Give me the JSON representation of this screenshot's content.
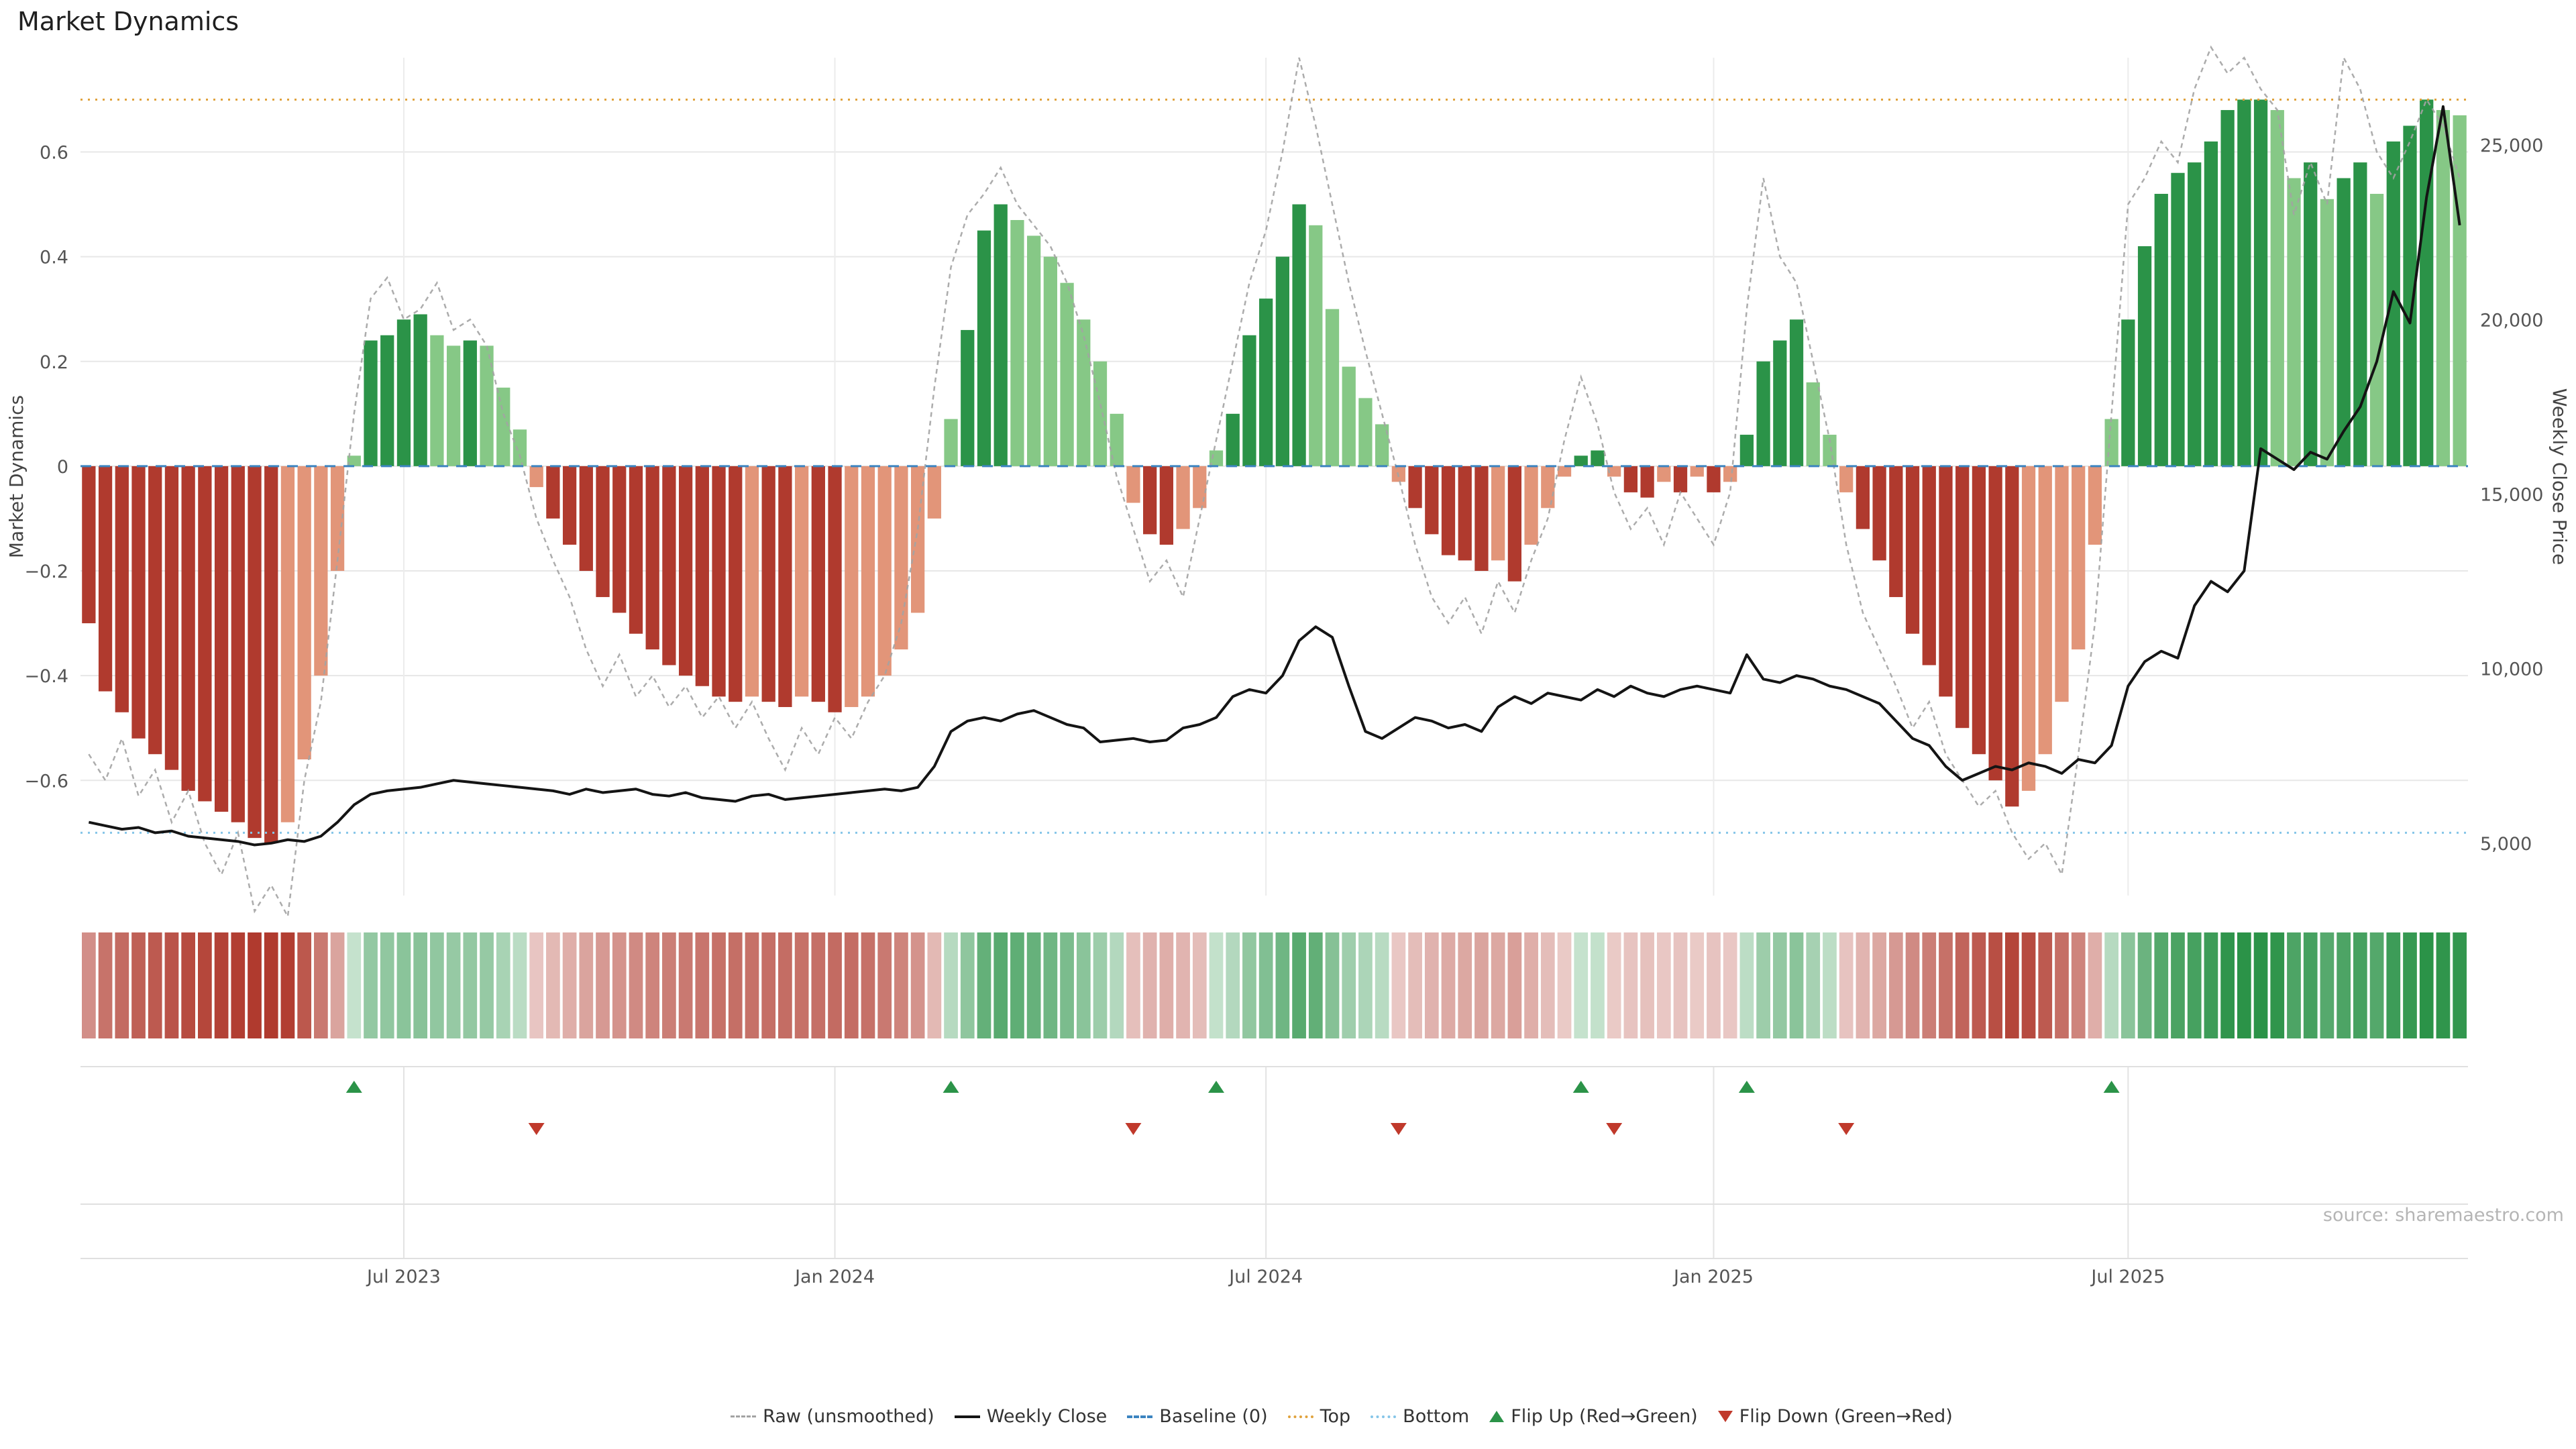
{
  "title": "Market Dynamics",
  "source": "source: sharemaestro.com",
  "axes": {
    "left_title": "Market Dynamics",
    "right_title": "Weekly Close Price",
    "left_ticks": [
      {
        "v": 0.6,
        "label": "0.6"
      },
      {
        "v": 0.4,
        "label": "0.4"
      },
      {
        "v": 0.2,
        "label": "0.2"
      },
      {
        "v": 0,
        "label": "0"
      },
      {
        "v": -0.2,
        "label": "−0.2"
      },
      {
        "v": -0.4,
        "label": "−0.4"
      },
      {
        "v": -0.6,
        "label": "−0.6"
      }
    ],
    "right_ticks": [
      {
        "v": 25000,
        "label": "25,000"
      },
      {
        "v": 20000,
        "label": "20,000"
      },
      {
        "v": 15000,
        "label": "15,000"
      },
      {
        "v": 10000,
        "label": "10,000"
      },
      {
        "v": 5000,
        "label": "5,000"
      }
    ],
    "x_ticks": [
      {
        "label": "Jul 2023",
        "index": 19
      },
      {
        "label": "Jan 2024",
        "index": 45
      },
      {
        "label": "Jul 2024",
        "index": 71
      },
      {
        "label": "Jan 2025",
        "index": 98
      },
      {
        "label": "Jul 2025",
        "index": 123
      }
    ]
  },
  "colors": {
    "bar_pos_strong": "#2b9348",
    "bar_pos_light": "#86c886",
    "bar_neg_strong": "#b03a2e",
    "bar_neg_light": "#e29579",
    "raw_line": "#a3a3a3",
    "close_line": "#141414",
    "baseline": "#3c84c0",
    "top_line": "#e0a23c",
    "bottom_line": "#85c5e8",
    "flip_up": "#2b9348",
    "flip_down": "#c0392b",
    "grid": "#e7e7e7",
    "axis_text": "#555555",
    "axis_title_text": "#444444"
  },
  "legend": {
    "items": [
      {
        "id": "raw",
        "label": "Raw (unsmoothed)",
        "swatch": "raw"
      },
      {
        "id": "weekly-close",
        "label": "Weekly Close",
        "swatch": "close"
      },
      {
        "id": "baseline",
        "label": "Baseline (0)",
        "swatch": "baseline"
      },
      {
        "id": "top",
        "label": "Top",
        "swatch": "top"
      },
      {
        "id": "bottom",
        "label": "Bottom",
        "swatch": "bottom"
      },
      {
        "id": "flip-up",
        "label": "Flip Up (Red→Green)",
        "swatch": "up"
      },
      {
        "id": "flip-down",
        "label": "Flip Down (Green→Red)",
        "swatch": "down"
      }
    ]
  },
  "chart_data": {
    "type": "bar",
    "subtype": "bar+line combo, weekly frequency, dual y-axis, with heatmap strip and flip markers",
    "title": "Market Dynamics",
    "xlabel": "",
    "ylabel_left": "Market Dynamics",
    "ylabel_right": "Weekly Close Price",
    "n_weeks": 144,
    "left_ylim": [
      -0.82,
      0.78
    ],
    "right_ylim": [
      3500,
      27500
    ],
    "grid": true,
    "legend_position": "bottom",
    "reference_lines": {
      "baseline": 0,
      "top": 0.7,
      "bottom": -0.7
    },
    "flip_up_indices": [
      16,
      52,
      68,
      90,
      100,
      122
    ],
    "flip_down_indices": [
      27,
      63,
      79,
      92,
      106
    ],
    "series": [
      {
        "name": "Market Dynamics (smoothed bars)",
        "type": "bar",
        "axis": "left",
        "values": [
          -0.3,
          -0.43,
          -0.47,
          -0.52,
          -0.55,
          -0.58,
          -0.62,
          -0.64,
          -0.66,
          -0.68,
          -0.71,
          -0.72,
          -0.68,
          -0.56,
          -0.4,
          -0.2,
          0.02,
          0.24,
          0.25,
          0.28,
          0.29,
          0.25,
          0.23,
          0.24,
          0.23,
          0.15,
          0.07,
          -0.04,
          -0.1,
          -0.15,
          -0.2,
          -0.25,
          -0.28,
          -0.32,
          -0.35,
          -0.38,
          -0.4,
          -0.42,
          -0.44,
          -0.45,
          -0.44,
          -0.45,
          -0.46,
          -0.44,
          -0.45,
          -0.47,
          -0.46,
          -0.44,
          -0.4,
          -0.35,
          -0.28,
          -0.1,
          0.09,
          0.26,
          0.45,
          0.5,
          0.47,
          0.44,
          0.4,
          0.35,
          0.28,
          0.2,
          0.1,
          -0.07,
          -0.13,
          -0.15,
          -0.12,
          -0.08,
          0.03,
          0.1,
          0.25,
          0.32,
          0.4,
          0.5,
          0.46,
          0.3,
          0.19,
          0.13,
          0.08,
          -0.03,
          -0.08,
          -0.13,
          -0.17,
          -0.18,
          -0.2,
          -0.18,
          -0.22,
          -0.15,
          -0.08,
          -0.02,
          0.02,
          0.03,
          -0.02,
          -0.05,
          -0.06,
          -0.03,
          -0.05,
          -0.02,
          -0.05,
          -0.03,
          0.06,
          0.2,
          0.24,
          0.28,
          0.16,
          0.06,
          -0.05,
          -0.12,
          -0.18,
          -0.25,
          -0.32,
          -0.38,
          -0.44,
          -0.5,
          -0.55,
          -0.6,
          -0.65,
          -0.62,
          -0.55,
          -0.45,
          -0.35,
          -0.15,
          0.09,
          0.28,
          0.42,
          0.52,
          0.56,
          0.58,
          0.62,
          0.68,
          0.7,
          0.7,
          0.68,
          0.55,
          0.58,
          0.51,
          0.55,
          0.58,
          0.52,
          0.62,
          0.65,
          0.7,
          0.68,
          0.67
        ]
      },
      {
        "name": "Raw (unsmoothed)",
        "type": "line",
        "axis": "left",
        "values": [
          -0.55,
          -0.6,
          -0.52,
          -0.63,
          -0.58,
          -0.68,
          -0.62,
          -0.72,
          -0.78,
          -0.7,
          -0.85,
          -0.8,
          -0.86,
          -0.6,
          -0.45,
          -0.18,
          0.1,
          0.32,
          0.36,
          0.28,
          0.3,
          0.35,
          0.26,
          0.28,
          0.23,
          0.1,
          0.02,
          -0.1,
          -0.18,
          -0.25,
          -0.35,
          -0.42,
          -0.36,
          -0.44,
          -0.4,
          -0.46,
          -0.42,
          -0.48,
          -0.44,
          -0.5,
          -0.45,
          -0.52,
          -0.58,
          -0.5,
          -0.55,
          -0.48,
          -0.52,
          -0.45,
          -0.4,
          -0.3,
          -0.12,
          0.15,
          0.38,
          0.48,
          0.52,
          0.57,
          0.5,
          0.46,
          0.42,
          0.35,
          0.25,
          0.12,
          -0.02,
          -0.12,
          -0.22,
          -0.18,
          -0.25,
          -0.1,
          0.05,
          0.2,
          0.35,
          0.45,
          0.6,
          0.78,
          0.65,
          0.5,
          0.35,
          0.22,
          0.1,
          -0.02,
          -0.15,
          -0.25,
          -0.3,
          -0.25,
          -0.32,
          -0.22,
          -0.28,
          -0.18,
          -0.1,
          0.05,
          0.17,
          0.08,
          -0.05,
          -0.12,
          -0.08,
          -0.15,
          -0.05,
          -0.1,
          -0.15,
          -0.05,
          0.3,
          0.55,
          0.4,
          0.35,
          0.2,
          0.05,
          -0.15,
          -0.28,
          -0.35,
          -0.42,
          -0.5,
          -0.45,
          -0.55,
          -0.6,
          -0.65,
          -0.62,
          -0.7,
          -0.75,
          -0.72,
          -0.78,
          -0.55,
          -0.3,
          0.1,
          0.5,
          0.55,
          0.62,
          0.58,
          0.72,
          0.8,
          0.75,
          0.78,
          0.72,
          0.68,
          0.48,
          0.58,
          0.5,
          0.78,
          0.72,
          0.6,
          0.55,
          0.62,
          0.7,
          0.65,
          0.55
        ]
      },
      {
        "name": "Weekly Close",
        "type": "line",
        "axis": "right",
        "values": [
          5600,
          5500,
          5400,
          5450,
          5300,
          5350,
          5200,
          5150,
          5100,
          5050,
          4950,
          5000,
          5100,
          5050,
          5200,
          5600,
          6100,
          6400,
          6500,
          6550,
          6600,
          6700,
          6800,
          6750,
          6700,
          6650,
          6600,
          6550,
          6500,
          6400,
          6550,
          6450,
          6500,
          6550,
          6400,
          6350,
          6450,
          6300,
          6250,
          6200,
          6350,
          6400,
          6250,
          6300,
          6350,
          6400,
          6450,
          6500,
          6550,
          6500,
          6600,
          7200,
          8200,
          8500,
          8600,
          8500,
          8700,
          8800,
          8600,
          8400,
          8300,
          7900,
          7950,
          8000,
          7900,
          7950,
          8300,
          8400,
          8600,
          9200,
          9400,
          9300,
          9800,
          10800,
          11200,
          10900,
          9500,
          8200,
          8000,
          8300,
          8600,
          8500,
          8300,
          8400,
          8200,
          8900,
          9200,
          9000,
          9300,
          9200,
          9100,
          9400,
          9200,
          9500,
          9300,
          9200,
          9400,
          9500,
          9400,
          9300,
          10400,
          9700,
          9600,
          9800,
          9700,
          9500,
          9400,
          9200,
          9000,
          8500,
          8000,
          7800,
          7200,
          6800,
          7000,
          7200,
          7100,
          7300,
          7200,
          7000,
          7400,
          7300,
          7800,
          9500,
          10200,
          10500,
          10300,
          11800,
          12500,
          12200,
          12800,
          16300,
          16000,
          15700,
          16200,
          16000,
          16800,
          17500,
          18800,
          20800,
          19900,
          23500,
          26100,
          22700
        ]
      }
    ]
  }
}
